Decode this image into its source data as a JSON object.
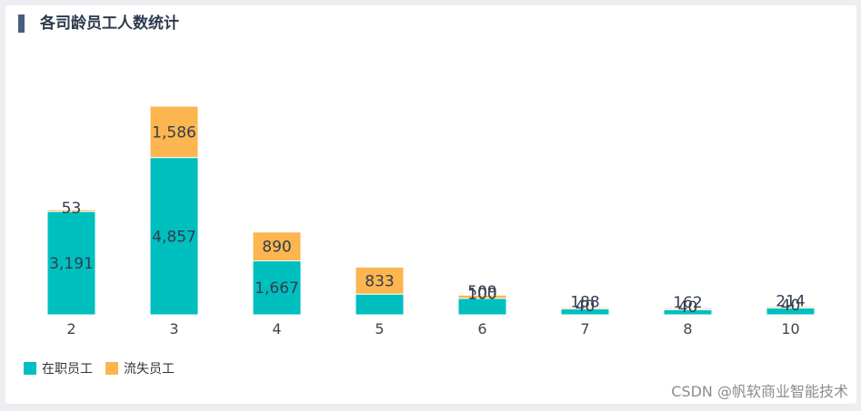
{
  "header": {
    "title": "各司龄员工人数统计"
  },
  "chart_data": {
    "type": "bar",
    "stacked": true,
    "title": "各司龄员工人数统计",
    "categories": [
      "2",
      "3",
      "4",
      "5",
      "6",
      "7",
      "8",
      "10"
    ],
    "series": [
      {
        "name": "在职员工",
        "color": "#00bfbf",
        "values": [
          3191,
          4857,
          1667,
          640,
          509,
          188,
          162,
          214
        ]
      },
      {
        "name": "流失员工",
        "color": "#fcb64f",
        "values": [
          53,
          1586,
          890,
          833,
          100,
          40,
          40,
          40
        ]
      }
    ],
    "ylim": [
      0,
      6443
    ],
    "legend": "bottom-left",
    "grid": false
  },
  "watermark": {
    "text": "CSDN @帆软商业智能技术"
  }
}
